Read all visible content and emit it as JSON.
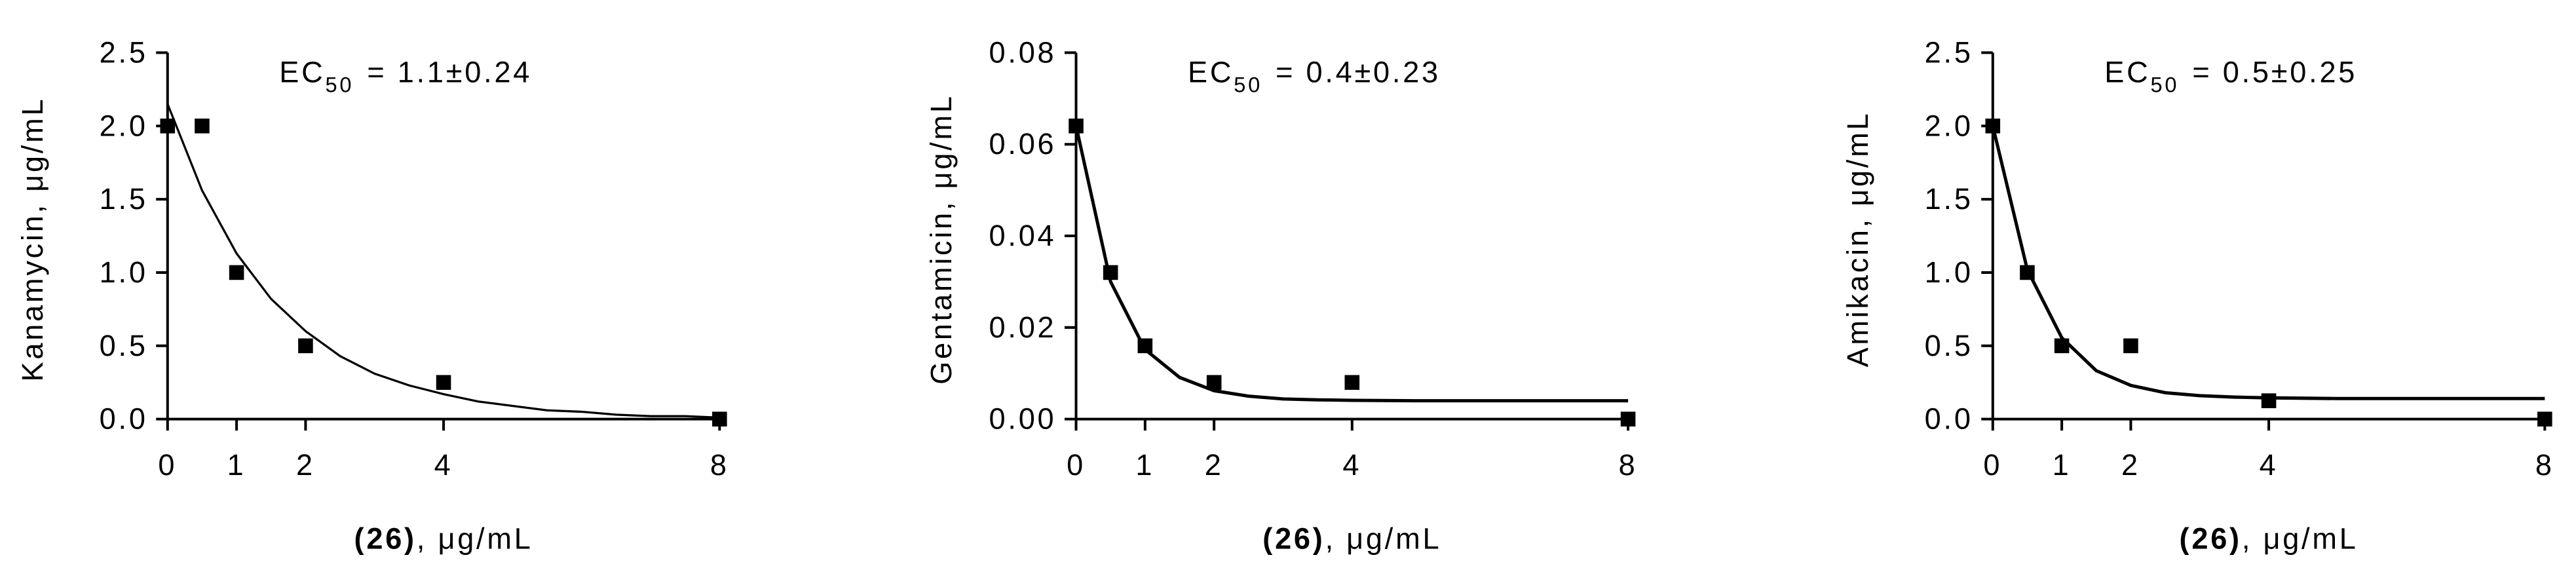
{
  "chart_data": [
    {
      "type": "scatter",
      "ylabel": "Kanamycin, μg/mL",
      "xlabel_bold": "(26)",
      "xlabel": ", μg/mL",
      "annotation": {
        "prefix": "EC",
        "subscript": "50",
        "text": "= 1.1±0.24"
      },
      "x": [
        0,
        0.5,
        1,
        2,
        4,
        8
      ],
      "values": [
        2.0,
        2.0,
        1.0,
        0.5,
        0.25,
        0.0
      ],
      "color": "#000000",
      "fit": {
        "x": [
          0,
          0.5,
          1,
          1.5,
          2,
          2.5,
          3,
          3.5,
          4,
          4.5,
          5,
          5.5,
          6,
          6.5,
          7,
          7.5,
          8
        ],
        "values": [
          2.15,
          1.56,
          1.13,
          0.82,
          0.6,
          0.43,
          0.31,
          0.23,
          0.17,
          0.12,
          0.09,
          0.06,
          0.05,
          0.03,
          0.02,
          0.02,
          0.01
        ]
      },
      "xlim": [
        0,
        8
      ],
      "xticks": [
        0,
        1,
        2,
        4,
        8
      ],
      "ylim": [
        0,
        2.5
      ],
      "yticks": [
        {
          "value": 0,
          "label": "0.0"
        },
        {
          "value": 0.5,
          "label": "0.5"
        },
        {
          "value": 1,
          "label": "1.0"
        },
        {
          "value": 1.5,
          "label": "1.5"
        },
        {
          "value": 2,
          "label": "2.0"
        },
        {
          "value": 2.5,
          "label": "2.5"
        }
      ]
    },
    {
      "type": "scatter",
      "ylabel": "Gentamicin, μg/mL",
      "xlabel_bold": "(26)",
      "xlabel": ", μg/mL",
      "annotation": {
        "prefix": "EC",
        "subscript": "50",
        "text": "= 0.4±0.23"
      },
      "x": [
        0,
        0.5,
        1,
        2,
        4,
        8
      ],
      "values": [
        0.064,
        0.032,
        0.016,
        0.008,
        0.008,
        0.0
      ],
      "color": "#000000",
      "fit": {
        "x": [
          0,
          0.5,
          1,
          1.5,
          2,
          2.5,
          3,
          3.5,
          4,
          5,
          6,
          7,
          8
        ],
        "values": [
          0.064,
          0.03,
          0.0152,
          0.0091,
          0.0062,
          0.005,
          0.0044,
          0.0042,
          0.0041,
          0.004,
          0.004,
          0.004,
          0.004
        ]
      },
      "xlim": [
        0,
        8
      ],
      "xticks": [
        0,
        1,
        2,
        4,
        8
      ],
      "ylim": [
        0,
        0.08
      ],
      "yticks": [
        {
          "value": 0,
          "label": "0.00"
        },
        {
          "value": 0.02,
          "label": "0.02"
        },
        {
          "value": 0.04,
          "label": "0.04"
        },
        {
          "value": 0.06,
          "label": "0.06"
        },
        {
          "value": 0.08,
          "label": "0.08"
        }
      ]
    },
    {
      "type": "scatter",
      "ylabel": "Amikacin, μg/mL",
      "xlabel_bold": "(26)",
      "xlabel": ", μg/mL",
      "annotation": {
        "prefix": "EC",
        "subscript": "50",
        "text": "= 0.5±0.25"
      },
      "x": [
        0,
        0.5,
        1,
        2,
        4,
        8
      ],
      "values": [
        2.0,
        1.0,
        0.5,
        0.5,
        0.125,
        0.0
      ],
      "color": "#000000",
      "fit": {
        "x": [
          0,
          0.5,
          1,
          1.5,
          2,
          2.5,
          3,
          3.5,
          4,
          5,
          6,
          7,
          8
        ],
        "values": [
          2.0,
          1.02,
          0.555,
          0.33,
          0.23,
          0.18,
          0.16,
          0.15,
          0.145,
          0.14,
          0.14,
          0.14,
          0.14
        ]
      },
      "xlim": [
        0,
        8
      ],
      "xticks": [
        0,
        1,
        2,
        4,
        8
      ],
      "ylim": [
        0,
        2.5
      ],
      "yticks": [
        {
          "value": 0,
          "label": "0.0"
        },
        {
          "value": 0.5,
          "label": "0.5"
        },
        {
          "value": 1,
          "label": "1.0"
        },
        {
          "value": 1.5,
          "label": "1.5"
        },
        {
          "value": 2,
          "label": "2.0"
        },
        {
          "value": 2.5,
          "label": "2.5"
        }
      ]
    }
  ]
}
